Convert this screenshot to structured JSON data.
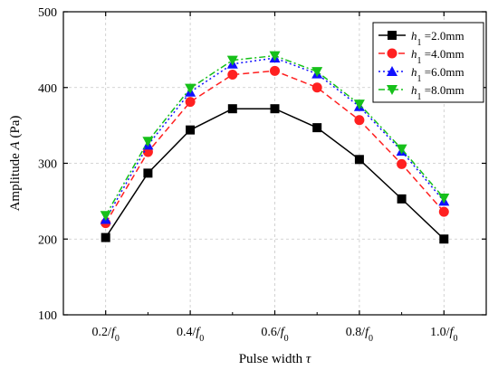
{
  "chart_data": {
    "type": "line",
    "x": [
      0.2,
      0.3,
      0.4,
      0.5,
      0.6,
      0.7,
      0.8,
      0.9,
      1.0
    ],
    "xticks": [
      0.2,
      0.4,
      0.6,
      0.8,
      1.0
    ],
    "xtick_labels": [
      "0.2/f0",
      "0.4/f0",
      "0.6/f0",
      "0.8/f0",
      "1.0/f0"
    ],
    "xlabel": "Pulse width τ",
    "ylabel": "Amplitude A (Pa)",
    "xlim": [
      0.1,
      1.1
    ],
    "ylim": [
      100,
      500
    ],
    "yticks": [
      100,
      200,
      300,
      400,
      500
    ],
    "grid": true,
    "legend_position": "top-right",
    "series": [
      {
        "name": "h1 =2.0mm",
        "marker": "square",
        "dash": "solid",
        "color": "#000000",
        "values": [
          202,
          287,
          344,
          372,
          372,
          347,
          305,
          253,
          200
        ]
      },
      {
        "name": "h1 =4.0mm",
        "marker": "circle",
        "dash": "dashed",
        "color": "#ff2020",
        "values": [
          221,
          315,
          381,
          417,
          422,
          400,
          357,
          299,
          236
        ]
      },
      {
        "name": "h1 =6.0mm",
        "marker": "triangle-up",
        "dash": "dotted",
        "color": "#1010ff",
        "values": [
          226,
          324,
          394,
          431,
          439,
          418,
          375,
          316,
          250
        ]
      },
      {
        "name": "h1 =8.0mm",
        "marker": "triangle-down",
        "dash": "dashdot",
        "color": "#16c01a",
        "values": [
          231,
          329,
          399,
          436,
          442,
          421,
          378,
          319,
          254
        ]
      }
    ]
  }
}
